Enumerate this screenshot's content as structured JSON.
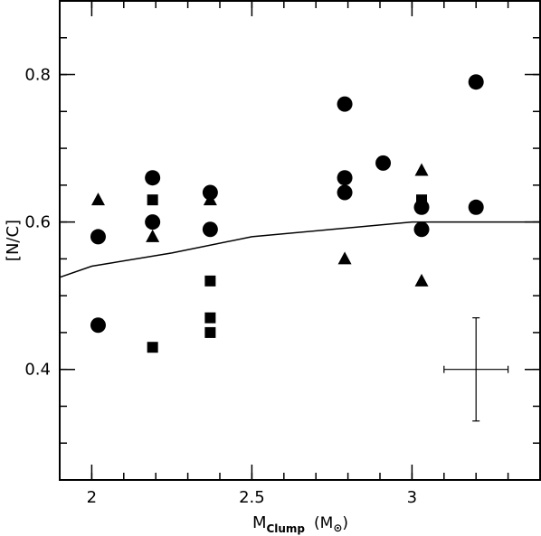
{
  "chart_data": {
    "type": "scatter",
    "xlabel": {
      "main": "M",
      "sub": "Clump",
      "unit_open": "(M",
      "unit_symbol": "⊙",
      "unit_close": ")"
    },
    "ylabel": "[N/C]",
    "xlim": [
      1.9,
      3.4
    ],
    "ylim": [
      0.25,
      0.9
    ],
    "x_ticks": [
      {
        "value": 2,
        "label": "2"
      },
      {
        "value": 2.5,
        "label": "2.5"
      },
      {
        "value": 3,
        "label": "3"
      }
    ],
    "y_ticks": [
      {
        "value": 0.4,
        "label": "0.4"
      },
      {
        "value": 0.6,
        "label": "0.6"
      },
      {
        "value": 0.8,
        "label": "0.8"
      }
    ],
    "grid": false,
    "legend": "none",
    "series": [
      {
        "marker": "circle",
        "points": [
          {
            "x": 2.02,
            "y": 0.58
          },
          {
            "x": 2.02,
            "y": 0.46
          },
          {
            "x": 2.19,
            "y": 0.66
          },
          {
            "x": 2.19,
            "y": 0.6
          },
          {
            "x": 2.37,
            "y": 0.64
          },
          {
            "x": 2.37,
            "y": 0.59
          },
          {
            "x": 2.79,
            "y": 0.76
          },
          {
            "x": 2.79,
            "y": 0.66
          },
          {
            "x": 2.79,
            "y": 0.64
          },
          {
            "x": 2.91,
            "y": 0.68
          },
          {
            "x": 3.03,
            "y": 0.62
          },
          {
            "x": 3.03,
            "y": 0.59
          },
          {
            "x": 3.2,
            "y": 0.79
          },
          {
            "x": 3.2,
            "y": 0.62
          }
        ]
      },
      {
        "marker": "square",
        "points": [
          {
            "x": 2.19,
            "y": 0.63
          },
          {
            "x": 2.19,
            "y": 0.43
          },
          {
            "x": 2.37,
            "y": 0.52
          },
          {
            "x": 2.37,
            "y": 0.47
          },
          {
            "x": 2.37,
            "y": 0.45
          },
          {
            "x": 3.03,
            "y": 0.63
          }
        ]
      },
      {
        "marker": "triangle",
        "points": [
          {
            "x": 2.02,
            "y": 0.63
          },
          {
            "x": 2.19,
            "y": 0.58
          },
          {
            "x": 2.37,
            "y": 0.63
          },
          {
            "x": 2.79,
            "y": 0.55
          },
          {
            "x": 3.03,
            "y": 0.67
          },
          {
            "x": 3.03,
            "y": 0.52
          }
        ]
      }
    ],
    "model_line": [
      {
        "x": 1.9,
        "y": 0.525
      },
      {
        "x": 2.0,
        "y": 0.54
      },
      {
        "x": 2.25,
        "y": 0.558
      },
      {
        "x": 2.5,
        "y": 0.58
      },
      {
        "x": 2.75,
        "y": 0.59
      },
      {
        "x": 3.0,
        "y": 0.6
      },
      {
        "x": 3.4,
        "y": 0.6
      }
    ],
    "error_bar": {
      "x": 3.2,
      "y": 0.4,
      "x_err": 0.1,
      "y_err": 0.07
    }
  }
}
